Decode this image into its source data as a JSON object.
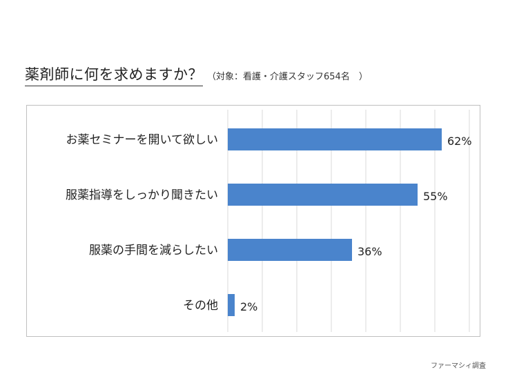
{
  "title": "薬剤師に何を求めますか？",
  "subtitle": "（対象：看護・介護スタッフ654名　）",
  "footer": "ファーマシィ調査",
  "bar_color": "#4a84cc",
  "chart_data": {
    "type": "bar",
    "orientation": "horizontal",
    "categories": [
      "お薬セミナーを開いて欲しい",
      "服薬指導をしっかり聞きたい",
      "服薬の手間を減らしたい",
      "その他"
    ],
    "values": [
      62,
      55,
      36,
      2
    ],
    "value_labels": [
      "62%",
      "55%",
      "36%",
      "2%"
    ],
    "xlim": [
      0,
      70
    ],
    "grid": true,
    "legend": "none"
  }
}
